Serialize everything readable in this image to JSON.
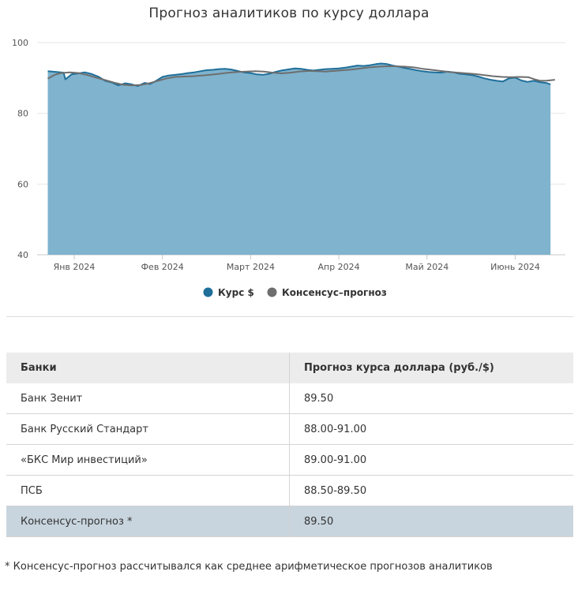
{
  "chart_data": {
    "type": "area",
    "title": "Прогноз аналитиков по курсу доллара",
    "xlabel": "",
    "ylabel": "",
    "ylim": [
      40,
      100
    ],
    "y_ticks": [
      "100",
      "80",
      "60",
      "40"
    ],
    "x_ticks": [
      "Янв 2024",
      "Фев 2024",
      "Март 2024",
      "Апр 2024",
      "Май 2024",
      "Июнь 2024"
    ],
    "x_range": [
      -0.3,
      5.45
    ],
    "grid": true,
    "legend_position": "bottom-center",
    "series": [
      {
        "name": "Курс $",
        "color": "#1f6f9a",
        "fill": "#7fb3ce",
        "points": [
          [
            -0.3,
            91.9
          ],
          [
            -0.2,
            91.7
          ],
          [
            -0.12,
            91.5
          ],
          [
            -0.1,
            89.6
          ],
          [
            -0.03,
            91.0
          ],
          [
            0.05,
            91.3
          ],
          [
            0.12,
            91.6
          ],
          [
            0.2,
            91.1
          ],
          [
            0.27,
            90.4
          ],
          [
            0.35,
            89.2
          ],
          [
            0.43,
            88.7
          ],
          [
            0.5,
            87.9
          ],
          [
            0.58,
            88.5
          ],
          [
            0.65,
            88.2
          ],
          [
            0.72,
            87.7
          ],
          [
            0.8,
            88.6
          ],
          [
            0.86,
            88.3
          ],
          [
            0.93,
            89.2
          ],
          [
            1.0,
            90.3
          ],
          [
            1.07,
            90.7
          ],
          [
            1.15,
            90.9
          ],
          [
            1.22,
            91.1
          ],
          [
            1.29,
            91.4
          ],
          [
            1.36,
            91.6
          ],
          [
            1.43,
            91.9
          ],
          [
            1.5,
            92.2
          ],
          [
            1.57,
            92.3
          ],
          [
            1.64,
            92.5
          ],
          [
            1.71,
            92.6
          ],
          [
            1.78,
            92.4
          ],
          [
            1.85,
            92.0
          ],
          [
            1.92,
            91.6
          ],
          [
            2.0,
            91.4
          ],
          [
            2.07,
            91.0
          ],
          [
            2.14,
            90.9
          ],
          [
            2.21,
            91.2
          ],
          [
            2.28,
            91.7
          ],
          [
            2.35,
            92.1
          ],
          [
            2.42,
            92.4
          ],
          [
            2.5,
            92.7
          ],
          [
            2.57,
            92.6
          ],
          [
            2.64,
            92.3
          ],
          [
            2.71,
            92.1
          ],
          [
            2.78,
            92.3
          ],
          [
            2.85,
            92.5
          ],
          [
            2.92,
            92.6
          ],
          [
            3.0,
            92.7
          ],
          [
            3.07,
            92.9
          ],
          [
            3.14,
            93.2
          ],
          [
            3.21,
            93.5
          ],
          [
            3.28,
            93.4
          ],
          [
            3.35,
            93.6
          ],
          [
            3.42,
            93.9
          ],
          [
            3.48,
            94.1
          ],
          [
            3.55,
            93.9
          ],
          [
            3.61,
            93.5
          ],
          [
            3.68,
            93.2
          ],
          [
            3.75,
            92.8
          ],
          [
            3.82,
            92.5
          ],
          [
            3.88,
            92.2
          ],
          [
            3.95,
            91.9
          ],
          [
            4.02,
            91.7
          ],
          [
            4.09,
            91.6
          ],
          [
            4.16,
            91.5
          ],
          [
            4.23,
            91.8
          ],
          [
            4.3,
            91.6
          ],
          [
            4.37,
            91.2
          ],
          [
            4.44,
            91.0
          ],
          [
            4.51,
            90.8
          ],
          [
            4.58,
            90.4
          ],
          [
            4.65,
            89.9
          ],
          [
            4.72,
            89.5
          ],
          [
            4.79,
            89.2
          ],
          [
            4.86,
            89.0
          ],
          [
            4.93,
            89.9
          ],
          [
            5.0,
            90.1
          ],
          [
            5.07,
            89.3
          ],
          [
            5.14,
            88.9
          ],
          [
            5.21,
            89.2
          ],
          [
            5.28,
            88.8
          ],
          [
            5.35,
            88.6
          ],
          [
            5.4,
            88.2
          ]
        ]
      },
      {
        "name": "Консенсус–прогноз",
        "color": "#6e6e6e",
        "points": [
          [
            -0.3,
            89.8
          ],
          [
            -0.22,
            90.9
          ],
          [
            -0.15,
            91.4
          ],
          [
            -0.05,
            91.6
          ],
          [
            0.05,
            91.4
          ],
          [
            0.15,
            90.8
          ],
          [
            0.25,
            90.1
          ],
          [
            0.35,
            89.4
          ],
          [
            0.45,
            88.7
          ],
          [
            0.55,
            88.1
          ],
          [
            0.65,
            87.9
          ],
          [
            0.75,
            88.0
          ],
          [
            0.85,
            88.5
          ],
          [
            0.95,
            89.2
          ],
          [
            1.05,
            89.9
          ],
          [
            1.15,
            90.3
          ],
          [
            1.25,
            90.4
          ],
          [
            1.35,
            90.5
          ],
          [
            1.45,
            90.7
          ],
          [
            1.55,
            90.9
          ],
          [
            1.65,
            91.2
          ],
          [
            1.75,
            91.5
          ],
          [
            1.85,
            91.7
          ],
          [
            1.95,
            91.8
          ],
          [
            2.05,
            91.9
          ],
          [
            2.15,
            91.8
          ],
          [
            2.25,
            91.5
          ],
          [
            2.35,
            91.3
          ],
          [
            2.45,
            91.5
          ],
          [
            2.55,
            91.8
          ],
          [
            2.65,
            92.0
          ],
          [
            2.75,
            91.9
          ],
          [
            2.85,
            91.8
          ],
          [
            2.95,
            92.0
          ],
          [
            3.05,
            92.2
          ],
          [
            3.15,
            92.4
          ],
          [
            3.25,
            92.7
          ],
          [
            3.35,
            93.0
          ],
          [
            3.45,
            93.2
          ],
          [
            3.55,
            93.3
          ],
          [
            3.65,
            93.3
          ],
          [
            3.75,
            93.2
          ],
          [
            3.85,
            93.0
          ],
          [
            3.95,
            92.6
          ],
          [
            4.05,
            92.3
          ],
          [
            4.15,
            92.0
          ],
          [
            4.25,
            91.7
          ],
          [
            4.35,
            91.5
          ],
          [
            4.45,
            91.3
          ],
          [
            4.55,
            91.1
          ],
          [
            4.65,
            90.8
          ],
          [
            4.75,
            90.5
          ],
          [
            4.85,
            90.3
          ],
          [
            4.95,
            90.2
          ],
          [
            5.05,
            90.3
          ],
          [
            5.15,
            90.2
          ],
          [
            5.22,
            89.6
          ],
          [
            5.28,
            89.2
          ],
          [
            5.35,
            89.2
          ],
          [
            5.45,
            89.5
          ]
        ]
      }
    ]
  },
  "table": {
    "headers": [
      "Банки",
      "Прогноз курса доллара (руб./$)"
    ],
    "rows": [
      [
        "Банк Зенит",
        "89.50"
      ],
      [
        "Банк Русский Стандарт",
        "88.00-91.00"
      ],
      [
        "«БКС Мир инвестиций»",
        "89.00-91.00"
      ],
      [
        "ПСБ",
        "88.50-89.50"
      ]
    ],
    "consensus_row": [
      "Консенсус-прогноз *",
      "89.50"
    ],
    "consensus_color": "#c8d5de"
  },
  "footnote": "* Консенсус-прогноз рассчитывался как среднее арифметическое прогнозов аналитиков"
}
